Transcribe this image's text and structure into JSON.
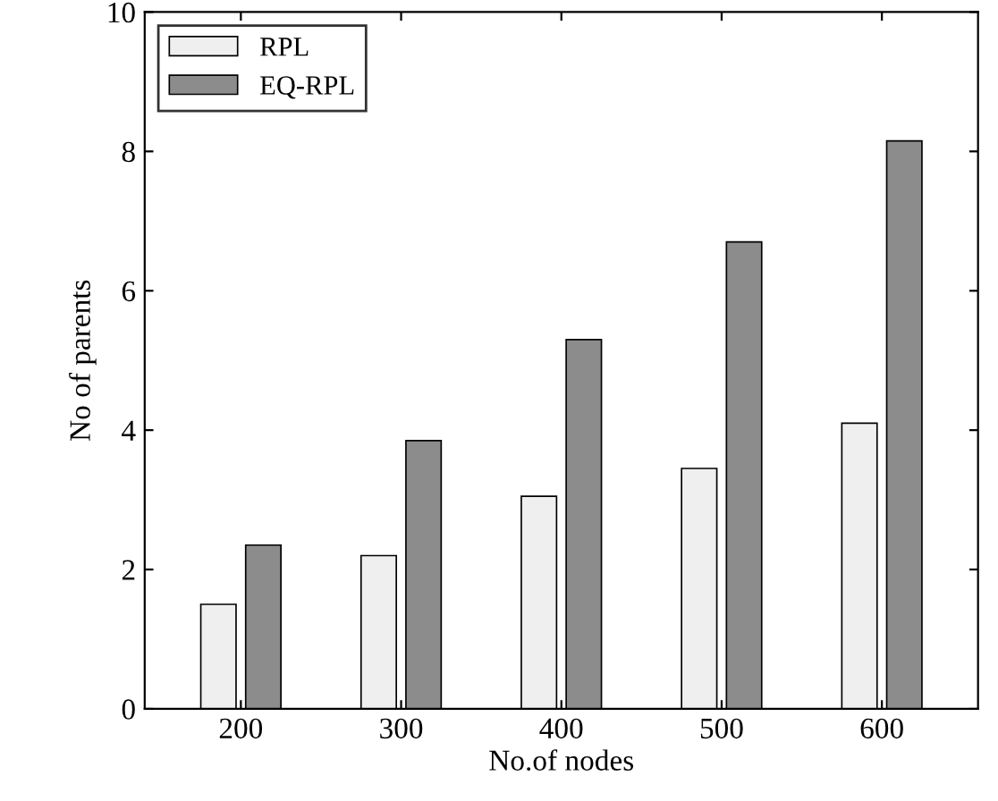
{
  "chart_data": {
    "type": "bar",
    "xlabel": "No.of nodes",
    "ylabel": "No of parents",
    "categories": [
      "200",
      "300",
      "400",
      "500",
      "600"
    ],
    "series": [
      {
        "name": "RPL",
        "color": "#efefef",
        "values": [
          1.5,
          2.2,
          3.05,
          3.45,
          4.1
        ]
      },
      {
        "name": "EQ-RPL",
        "color": "#8c8c8c",
        "values": [
          2.35,
          3.85,
          5.3,
          6.7,
          8.15
        ]
      }
    ],
    "ylim": [
      0,
      10
    ],
    "yticks": [
      0,
      2,
      4,
      6,
      8,
      10
    ],
    "legend": "top left",
    "grid": false
  }
}
